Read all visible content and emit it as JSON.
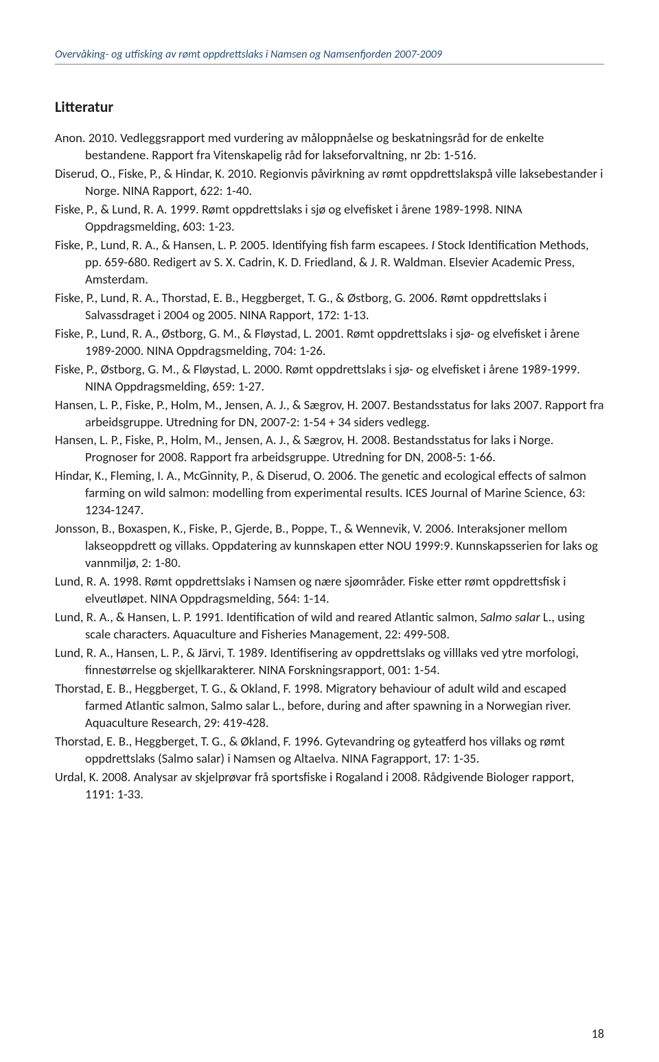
{
  "header": {
    "running_title": "Overvåking- og utfisking av rømt oppdrettslaks i Namsen og Namsenfjorden 2007-2009"
  },
  "section": {
    "heading": "Litteratur"
  },
  "references": [
    "Anon. 2010. Vedleggsrapport med vurdering av måloppnåelse og beskatningsråd for de enkelte bestandene. Rapport fra Vitenskapelig råd for lakseforvaltning, nr 2b: 1-516.",
    "Diserud, O., Fiske, P., & Hindar, K. 2010. Regionvis påvirkning av rømt oppdrettslakspå ville laksebestander i Norge. NINA Rapport, 622: 1-40.",
    "Fiske, P., & Lund, R. A. 1999. Rømt oppdrettslaks i sjø og elvefisket i årene 1989-1998. NINA Oppdragsmelding, 603: 1-23.",
    "Fiske, P., Lund, R. A., & Hansen, L. P. 2005. Identifying fish farm escapees. <em>I</em> Stock Identification Methods, pp. 659-680. Redigert av S. X. Cadrin, K. D. Friedland, &  J. R. Waldman. Elsevier Academic Press, Amsterdam.",
    "Fiske, P., Lund, R. A., Thorstad, E. B., Heggberget, T. G., & Østborg, G. 2006. Rømt oppdrettslaks i Salvassdraget i 2004 og 2005. NINA Rapport, 172: 1-13.",
    "Fiske, P., Lund, R. A., Østborg, G. M., & Fløystad, L. 2001. Rømt oppdrettslaks i sjø- og elvefisket i årene 1989-2000. NINA Oppdragsmelding, 704: 1-26.",
    "Fiske, P., Østborg, G. M., & Fløystad, L. 2000. Rømt oppdrettslaks i sjø- og elvefisket i årene 1989-1999. NINA Oppdragsmelding, 659: 1-27.",
    "Hansen, L. P., Fiske, P., Holm, M., Jensen, A. J., & Sægrov, H. 2007. Bestandsstatus for laks 2007. Rapport fra arbeidsgruppe. Utredning for DN, 2007-2: 1-54 + 34 siders vedlegg.",
    "Hansen, L. P., Fiske, P., Holm, M., Jensen, A. J., & Sægrov, H. 2008. Bestandsstatus for laks i Norge. Prognoser for 2008. Rapport fra arbeidsgruppe. Utredning for DN, 2008-5: 1-66.",
    "Hindar, K., Fleming, I. A., McGinnity, P., & Diserud, O. 2006. The genetic and ecological effects of salmon farming on wild salmon: modelling from experimental results. ICES Journal of Marine Science, 63: 1234-1247.",
    "Jonsson, B., Boxaspen, K., Fiske, P., Gjerde, B., Poppe, T., & Wennevik, V. 2006. Interaksjoner mellom lakseoppdrett og villaks. Oppdatering av kunnskapen etter NOU 1999:9. Kunnskapsserien for laks og vannmiljø, 2: 1-80.",
    "Lund, R. A. 1998. Rømt oppdrettslaks i Namsen og nære sjøområder. Fiske etter rømt oppdrettsfisk i elveutløpet. NINA Oppdragsmelding, 564: 1-14.",
    "Lund, R. A., & Hansen, L. P. 1991. Identification of wild and reared Atlantic salmon, <em>Salmo salar</em> L., using scale characters. Aquaculture and Fisheries Management, 22: 499-508.",
    "Lund, R. A., Hansen, L. P., & Järvi, T. 1989. Identifisering av oppdrettslaks og villlaks ved ytre morfologi, finnestørrelse og skjellkarakterer. NINA Forskningsrapport, 001: 1-54.",
    "Thorstad, E. B., Heggberget, T. G., & Okland, F. 1998. Migratory behaviour of adult wild and escaped farmed Atlantic salmon, Salmo salar L., before, during and after spawning in a Norwegian river. Aquaculture Research, 29: 419-428.",
    "Thorstad, E. B., Heggberget, T. G., & Økland, F. 1996. Gytevandring og gyteatferd hos villaks og rømt oppdrettslaks (Salmo salar) i Namsen og Altaelva. NINA Fagrapport, 17: 1-35.",
    "Urdal, K. 2008. Analysar av skjelprøvar frå sportsfiske i Rogaland i 2008. Rådgivende Biologer rapport, 1191: 1-33."
  ],
  "page_number": "18"
}
